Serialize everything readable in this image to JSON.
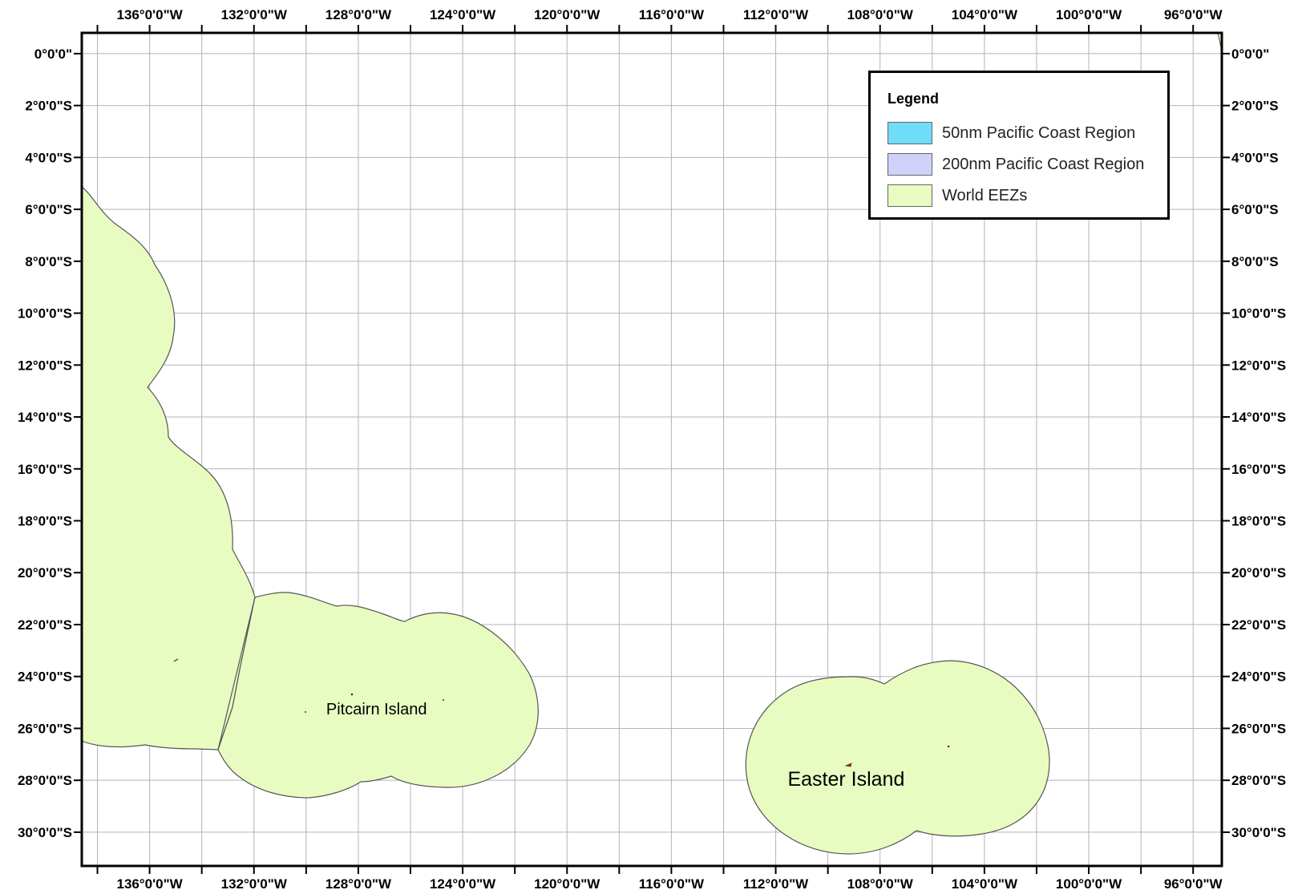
{
  "map": {
    "lon_min": -138.6,
    "lon_max": -94.9,
    "lat_top": 0.8,
    "lat_bottom": -31.3,
    "lon_ticks": [
      {
        "value": -136,
        "label": "136°0'0\"W"
      },
      {
        "value": -132,
        "label": "132°0'0\"W"
      },
      {
        "value": -128,
        "label": "128°0'0\"W"
      },
      {
        "value": -124,
        "label": "124°0'0\"W"
      },
      {
        "value": -120,
        "label": "120°0'0\"W"
      },
      {
        "value": -116,
        "label": "116°0'0\"W"
      },
      {
        "value": -112,
        "label": "112°0'0\"W"
      },
      {
        "value": -108,
        "label": "108°0'0\"W"
      },
      {
        "value": -104,
        "label": "104°0'0\"W"
      },
      {
        "value": -100,
        "label": "100°0'0\"W"
      },
      {
        "value": -96,
        "label": "96°0'0\"W"
      }
    ],
    "lat_ticks": [
      {
        "value": 0,
        "label": "0°0'0\""
      },
      {
        "value": -2,
        "label": "2°0'0\"S"
      },
      {
        "value": -4,
        "label": "4°0'0\"S"
      },
      {
        "value": -6,
        "label": "6°0'0\"S"
      },
      {
        "value": -8,
        "label": "8°0'0\"S"
      },
      {
        "value": -10,
        "label": "10°0'0\"S"
      },
      {
        "value": -12,
        "label": "12°0'0\"S"
      },
      {
        "value": -14,
        "label": "14°0'0\"S"
      },
      {
        "value": -16,
        "label": "16°0'0\"S"
      },
      {
        "value": -18,
        "label": "18°0'0\"S"
      },
      {
        "value": -20,
        "label": "20°0'0\"S"
      },
      {
        "value": -22,
        "label": "22°0'0\"S"
      },
      {
        "value": -24,
        "label": "24°0'0\"S"
      },
      {
        "value": -26,
        "label": "26°0'0\"S"
      },
      {
        "value": -28,
        "label": "28°0'0\"S"
      },
      {
        "value": -30,
        "label": "30°0'0\"S"
      }
    ],
    "place_labels": [
      {
        "name": "Pitcairn Island",
        "lon": -127.3,
        "lat": -25.25
      },
      {
        "name": "Easter Island",
        "lon": -109.3,
        "lat": -28.0
      }
    ],
    "colors": {
      "eez_fill": "#e8fcc2",
      "eez_stroke": "#555555",
      "grid": "#b4b4b4",
      "frame": "#000000"
    }
  },
  "legend": {
    "title": "Legend",
    "items": [
      {
        "label": "50nm Pacific Coast Region",
        "color": "#6fdcf8"
      },
      {
        "label": "200nm Pacific Coast Region",
        "color": "#cfd2f8"
      },
      {
        "label": "World EEZs",
        "color": "#e8fcc2"
      }
    ]
  }
}
